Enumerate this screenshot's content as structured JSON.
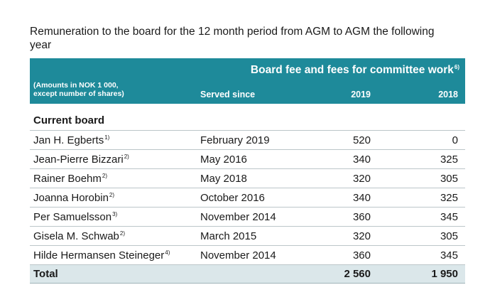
{
  "caption": "Remuneration to the board for the 12 month period from AGM to AGM the following year",
  "header": {
    "group_title": "Board fee and fees for committee work",
    "group_title_note": "6)",
    "amounts_note_line1": "(Amounts in NOK 1 000,",
    "amounts_note_line2": "except number of shares)",
    "served_since": "Served since",
    "year_1": "2019",
    "year_2": "2018"
  },
  "section_title": "Current board",
  "rows": [
    {
      "name": "Jan H. Egberts",
      "note": "1)",
      "since": "February 2019",
      "v2019": "520",
      "v2018": "0"
    },
    {
      "name": "Jean-Pierre Bizzari",
      "note": "2)",
      "since": "May 2016",
      "v2019": "340",
      "v2018": "325"
    },
    {
      "name": "Rainer Boehm",
      "note": "2)",
      "since": "May 2018",
      "v2019": "320",
      "v2018": "305"
    },
    {
      "name": "Joanna Horobin",
      "note": "2)",
      "since": "October 2016",
      "v2019": "340",
      "v2018": "325"
    },
    {
      "name": "Per Samuelsson",
      "note": "3)",
      "since": "November 2014",
      "v2019": "360",
      "v2018": "345"
    },
    {
      "name": "Gisela M. Schwab",
      "note": "2)",
      "since": "March 2015",
      "v2019": "320",
      "v2018": "305"
    },
    {
      "name": "Hilde Hermansen Steineger",
      "note": "4)",
      "since": "November 2014",
      "v2019": "360",
      "v2018": "345"
    }
  ],
  "total": {
    "label": "Total",
    "v2019": "2 560",
    "v2018": "1 950"
  },
  "colors": {
    "header_bg": "#1e8a9a",
    "total_bg": "#dbe7ea",
    "rule": "#bcc6c9"
  }
}
